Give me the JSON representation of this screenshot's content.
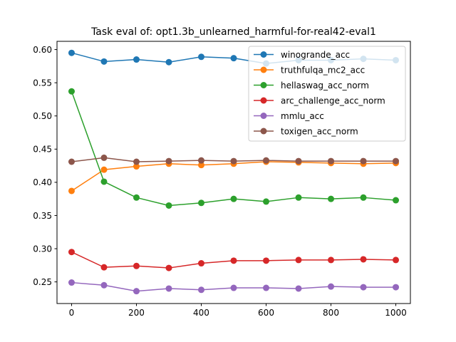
{
  "chart_data": {
    "type": "line",
    "title": "Task eval of: opt1.3b_unlearned_harmful-for-real42-eval1",
    "xlabel": "",
    "ylabel": "",
    "xlim": [
      -45,
      1045
    ],
    "ylim": [
      0.2174,
      0.6124
    ],
    "xticks": [
      0,
      200,
      400,
      600,
      800,
      1000
    ],
    "yticks": [
      0.25,
      0.3,
      0.35,
      0.4,
      0.45,
      0.5,
      0.55,
      0.6
    ],
    "ytick_labels": [
      "0.25",
      "0.30",
      "0.35",
      "0.40",
      "0.45",
      "0.50",
      "0.55",
      "0.60"
    ],
    "x": [
      0,
      100,
      200,
      300,
      400,
      500,
      600,
      700,
      800,
      900,
      1000
    ],
    "legend_position": "top-right",
    "grid": false,
    "series": [
      {
        "name": "winogrande_acc",
        "color": "#1f77b4",
        "values": [
          0.595,
          0.582,
          0.585,
          0.581,
          0.589,
          0.587,
          0.579,
          0.584,
          0.584,
          0.586,
          0.584
        ]
      },
      {
        "name": "truthfulqa_mc2_acc",
        "color": "#ff7f0e",
        "values": [
          0.387,
          0.419,
          0.424,
          0.428,
          0.426,
          0.428,
          0.431,
          0.43,
          0.429,
          0.428,
          0.429
        ]
      },
      {
        "name": "hellaswag_acc_norm",
        "color": "#2ca02c",
        "values": [
          0.537,
          0.401,
          0.377,
          0.365,
          0.369,
          0.375,
          0.371,
          0.377,
          0.375,
          0.377,
          0.373
        ]
      },
      {
        "name": "arc_challenge_acc_norm",
        "color": "#d62728",
        "values": [
          0.295,
          0.272,
          0.274,
          0.271,
          0.278,
          0.282,
          0.282,
          0.283,
          0.283,
          0.284,
          0.283
        ]
      },
      {
        "name": "mmlu_acc",
        "color": "#9467bd",
        "values": [
          0.249,
          0.245,
          0.236,
          0.24,
          0.238,
          0.241,
          0.241,
          0.24,
          0.243,
          0.242,
          0.242
        ]
      },
      {
        "name": "toxigen_acc_norm",
        "color": "#8c564b",
        "values": [
          0.431,
          0.437,
          0.431,
          0.432,
          0.433,
          0.432,
          0.433,
          0.432,
          0.432,
          0.432,
          0.432
        ]
      }
    ]
  }
}
